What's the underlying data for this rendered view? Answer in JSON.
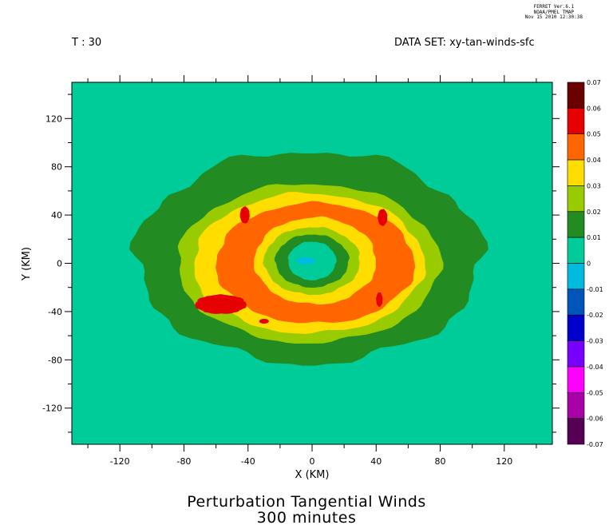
{
  "header": {
    "time_label": "T : 30",
    "dataset_label": "DATA SET: xy-tan-winds-sfc",
    "stamp_line1": "FERRET Ver.6.1",
    "stamp_line2": "NOAA/PMEL TMAP",
    "stamp_line3": "Nov 15 2010 12:30:38"
  },
  "chart_data": {
    "type": "heatmap",
    "title": "Perturbation Tangential Winds",
    "subtitle": "300 minutes",
    "xlabel": "X (KM)",
    "ylabel": "Y (KM)",
    "xlim": [
      -150,
      150
    ],
    "ylim": [
      -150,
      150
    ],
    "x_ticks": [
      -120,
      -80,
      -40,
      0,
      40,
      80,
      120
    ],
    "y_ticks": [
      120,
      80,
      40,
      0,
      -40,
      -80,
      -120
    ],
    "x_tick_labels": [
      "-120",
      "-80",
      "-40",
      "0",
      "40",
      "80",
      "120"
    ],
    "y_tick_labels": [
      "120",
      "80",
      "40",
      "0",
      "-40",
      "-80",
      "-120"
    ],
    "colorbar": {
      "levels": [
        "0.07",
        "0.06",
        "0.05",
        "0.04",
        "0.03",
        "0.02",
        "0.01",
        "0",
        "-0.01",
        "-0.02",
        "-0.03",
        "-0.04",
        "-0.05",
        "-0.06",
        "-0.07"
      ],
      "colors": [
        "#6b0000",
        "#e60000",
        "#ff6600",
        "#ffdd00",
        "#99cc00",
        "#228b22",
        "#00cc99",
        "#00bbdd",
        "#0055bb",
        "#0000cc",
        "#7700ff",
        "#ff00ff",
        "#aa00aa",
        "#550055"
      ]
    },
    "contours": [
      {
        "level": 0.01,
        "color": "#228b22",
        "center": [
          -2,
          5
        ],
        "radius": [
          108,
          88
        ]
      },
      {
        "level": 0.02,
        "color": "#99cc00",
        "center": [
          -2,
          0
        ],
        "radius": [
          82,
          66
        ]
      },
      {
        "level": 0.03,
        "color": "#ffdd00",
        "center": [
          -2,
          0
        ],
        "radius": [
          72,
          58
        ]
      },
      {
        "level": 0.04,
        "color": "#ff6600",
        "center": [
          2,
          0
        ],
        "radius": [
          62,
          50
        ]
      },
      {
        "level": 0.03,
        "color": "#ffdd00",
        "center": [
          2,
          2
        ],
        "radius": [
          38,
          36
        ]
      },
      {
        "level": 0.02,
        "color": "#99cc00",
        "center": [
          0,
          2
        ],
        "radius": [
          30,
          28
        ]
      },
      {
        "level": 0.01,
        "color": "#228b22",
        "center": [
          0,
          2
        ],
        "radius": [
          23,
          22
        ]
      },
      {
        "level": 0.0,
        "color": "#00cc99",
        "center": [
          0,
          2
        ],
        "radius": [
          15,
          16
        ]
      },
      {
        "level": -0.01,
        "color": "#00bbdd",
        "center": [
          -4,
          2
        ],
        "radius": [
          6,
          3
        ]
      }
    ],
    "max_patches": [
      {
        "level": 0.05,
        "color": "#e60000",
        "center": [
          -57,
          -34
        ],
        "radius": [
          16,
          8
        ]
      },
      {
        "level": 0.05,
        "color": "#e60000",
        "center": [
          -42,
          40
        ],
        "radius": [
          3,
          7
        ]
      },
      {
        "level": 0.05,
        "color": "#e60000",
        "center": [
          44,
          38
        ],
        "radius": [
          3,
          7
        ]
      },
      {
        "level": 0.05,
        "color": "#e60000",
        "center": [
          42,
          -30
        ],
        "radius": [
          2,
          6
        ]
      },
      {
        "level": 0.05,
        "color": "#e60000",
        "center": [
          -30,
          -48
        ],
        "radius": [
          3,
          2
        ]
      }
    ]
  }
}
